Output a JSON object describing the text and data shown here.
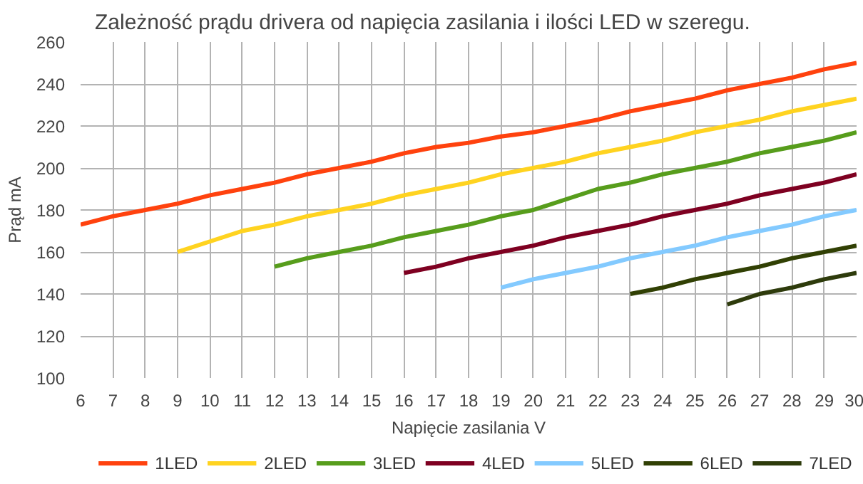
{
  "chart_data": {
    "type": "line",
    "title": "Zależność prądu drivera od napięcia zasilania i ilości LED w szeregu.",
    "xlabel": "Napięcie zasilania V",
    "ylabel": "Prąd mA",
    "xlim": [
      6,
      30
    ],
    "xticks": [
      6,
      7,
      8,
      9,
      10,
      11,
      12,
      13,
      14,
      15,
      16,
      17,
      18,
      19,
      20,
      21,
      22,
      23,
      24,
      25,
      26,
      27,
      28,
      29,
      30
    ],
    "ylim": [
      100,
      260
    ],
    "yticks": [
      100,
      120,
      140,
      160,
      180,
      200,
      220,
      240,
      260
    ],
    "grid": true,
    "legend": "bottom",
    "marker": "none",
    "line_style": "solid",
    "series": [
      {
        "name": "1LED",
        "color": "#ff420e",
        "x": [
          6,
          7,
          8,
          9,
          10,
          11,
          12,
          13,
          14,
          15,
          16,
          17,
          18,
          19,
          20,
          21,
          22,
          23,
          24,
          25,
          26,
          27,
          28,
          29,
          30
        ],
        "values": [
          173,
          177,
          180,
          183,
          187,
          190,
          193,
          197,
          200,
          203,
          207,
          210,
          212,
          215,
          217,
          220,
          223,
          227,
          230,
          233,
          237,
          240,
          243,
          247,
          250
        ]
      },
      {
        "name": "2LED",
        "color": "#ffd320",
        "x": [
          9,
          10,
          11,
          12,
          13,
          14,
          15,
          16,
          17,
          18,
          19,
          20,
          21,
          22,
          23,
          24,
          25,
          26,
          27,
          28,
          29,
          30
        ],
        "values": [
          160,
          165,
          170,
          173,
          177,
          180,
          183,
          187,
          190,
          193,
          197,
          200,
          203,
          207,
          210,
          213,
          217,
          220,
          223,
          227,
          230,
          233
        ]
      },
      {
        "name": "3LED",
        "color": "#579d1c",
        "x": [
          12,
          13,
          14,
          15,
          16,
          17,
          18,
          19,
          20,
          21,
          22,
          23,
          24,
          25,
          26,
          27,
          28,
          29,
          30
        ],
        "values": [
          153,
          157,
          160,
          163,
          167,
          170,
          173,
          177,
          180,
          185,
          190,
          193,
          197,
          200,
          203,
          207,
          210,
          213,
          217
        ]
      },
      {
        "name": "4LED",
        "color": "#7e0021",
        "x": [
          16,
          17,
          18,
          19,
          20,
          21,
          22,
          23,
          24,
          25,
          26,
          27,
          28,
          29,
          30
        ],
        "values": [
          150,
          153,
          157,
          160,
          163,
          167,
          170,
          173,
          177,
          180,
          183,
          187,
          190,
          193,
          197
        ]
      },
      {
        "name": "5LED",
        "color": "#83caff",
        "x": [
          19,
          20,
          21,
          22,
          23,
          24,
          25,
          26,
          27,
          28,
          29,
          30
        ],
        "values": [
          143,
          147,
          150,
          153,
          157,
          160,
          163,
          167,
          170,
          173,
          177,
          180
        ]
      },
      {
        "name": "6LED",
        "color": "#314004",
        "x": [
          23,
          24,
          25,
          26,
          27,
          28,
          29,
          30
        ],
        "values": [
          140,
          143,
          147,
          150,
          153,
          157,
          160,
          163
        ]
      },
      {
        "name": "7LED",
        "color": "#2e3b0c",
        "x": [
          26,
          27,
          28,
          29,
          30
        ],
        "values": [
          135,
          140,
          143,
          147,
          150
        ]
      }
    ]
  }
}
